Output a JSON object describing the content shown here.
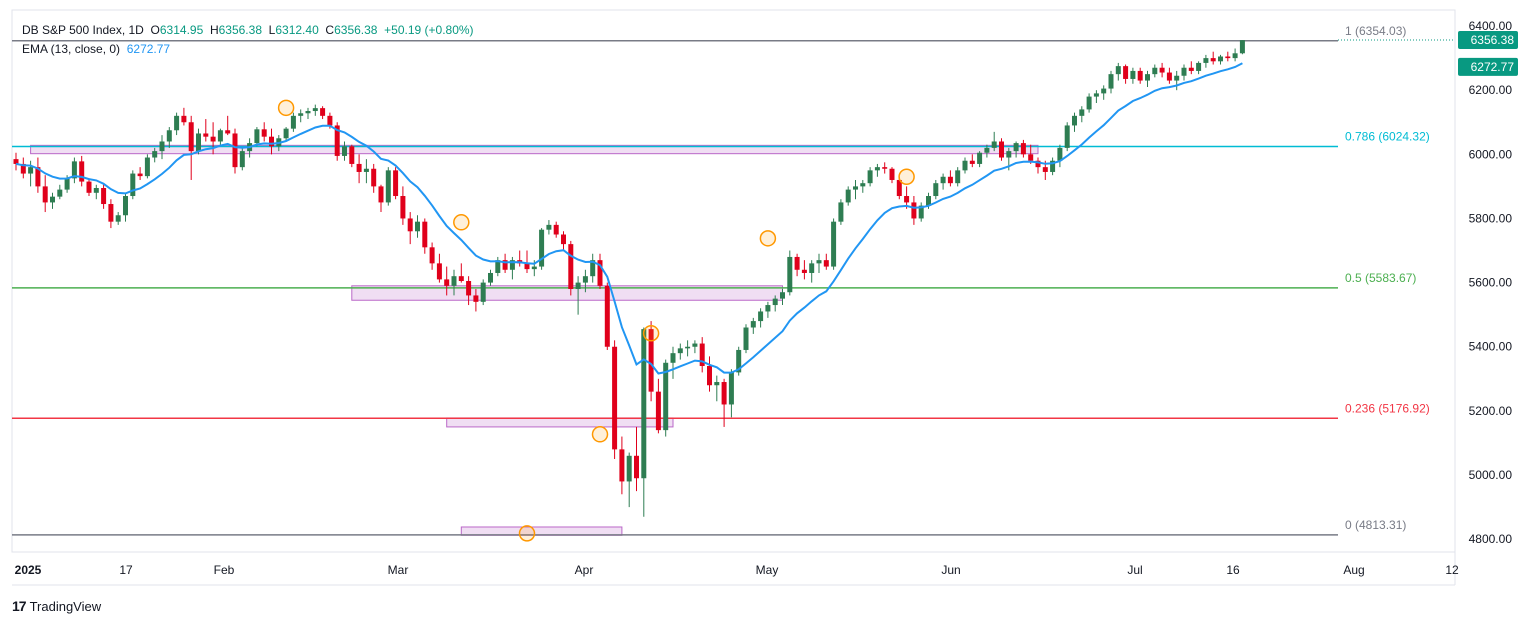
{
  "header": {
    "symbol": "DB S&P 500 Index, 1D",
    "open_label": "O",
    "open": "6314.95",
    "high_label": "H",
    "high": "6356.38",
    "low_label": "L",
    "low": "6312.40",
    "close_label": "C",
    "close": "6356.38",
    "change": "+50.19 (+0.80%)",
    "ema_label": "EMA (13, close, 0)",
    "ema_value": "6272.77"
  },
  "branding": {
    "logo_text": "TradingView",
    "logo_mark": "17"
  },
  "chart_data": {
    "type": "candlestick",
    "y_range": [
      4760,
      6450
    ],
    "y_ticks": [
      "6400.00",
      "6200.00",
      "6000.00",
      "5800.00",
      "5600.00",
      "5400.00",
      "5200.00",
      "5000.00",
      "4800.00"
    ],
    "x_ticks": [
      "2025",
      "17",
      "Feb",
      "Mar",
      "Apr",
      "May",
      "Jun",
      "Jul",
      "16",
      "Aug",
      "12"
    ],
    "price_badges": [
      {
        "label": "6356.38",
        "color": "#089981",
        "value": 6356.38
      },
      {
        "label": "6272.77",
        "color": "#089981",
        "value": 6272.77
      }
    ],
    "fib_levels": [
      {
        "ratio": "1",
        "label": "1 (6354.03)",
        "value": 6354.03,
        "color": "#787b86"
      },
      {
        "ratio": "0.786",
        "label": "0.786 (6024.32)",
        "value": 6024.32,
        "color": "#00bcd4"
      },
      {
        "ratio": "0.5",
        "label": "0.5 (5583.67)",
        "value": 5583.67,
        "color": "#4caf50"
      },
      {
        "ratio": "0.236",
        "label": "0.236 (5176.92)",
        "value": 5176.92,
        "color": "#f23645"
      },
      {
        "ratio": "0",
        "label": "0 (4813.31)",
        "value": 4813.31,
        "color": "#787b86"
      }
    ],
    "support_zones": [
      {
        "x0": 2,
        "x1": 140,
        "low": 6002,
        "high": 6028
      },
      {
        "x0": 46,
        "x1": 105,
        "low": 5545,
        "high": 5590
      },
      {
        "x0": 59,
        "x1": 90,
        "low": 5150,
        "high": 5178
      },
      {
        "x0": 61,
        "x1": 83,
        "low": 4812,
        "high": 4838
      }
    ],
    "markers": [
      {
        "x": 37,
        "y": 6145
      },
      {
        "x": 61,
        "y": 5788
      },
      {
        "x": 70,
        "y": 4818
      },
      {
        "x": 80,
        "y": 5127
      },
      {
        "x": 87,
        "y": 5442
      },
      {
        "x": 103,
        "y": 5738
      },
      {
        "x": 122,
        "y": 5930
      }
    ],
    "ema": {
      "name": "EMA (13, close, 0)",
      "color": "#2196f3"
    },
    "candles": [
      [
        5985,
        6005,
        5950,
        5970
      ],
      [
        5970,
        5990,
        5925,
        5940
      ],
      [
        5940,
        5980,
        5900,
        5960
      ],
      [
        5960,
        5990,
        5880,
        5900
      ],
      [
        5900,
        5935,
        5820,
        5850
      ],
      [
        5850,
        5880,
        5830,
        5868
      ],
      [
        5868,
        5905,
        5860,
        5890
      ],
      [
        5890,
        5935,
        5880,
        5925
      ],
      [
        5925,
        5990,
        5910,
        5978
      ],
      [
        5978,
        5995,
        5900,
        5915
      ],
      [
        5915,
        5925,
        5870,
        5880
      ],
      [
        5880,
        5905,
        5860,
        5895
      ],
      [
        5895,
        5910,
        5830,
        5845
      ],
      [
        5845,
        5860,
        5770,
        5790
      ],
      [
        5790,
        5820,
        5780,
        5810
      ],
      [
        5810,
        5880,
        5790,
        5870
      ],
      [
        5870,
        5950,
        5860,
        5940
      ],
      [
        5940,
        5960,
        5920,
        5932
      ],
      [
        5932,
        6000,
        5925,
        5990
      ],
      [
        5990,
        6020,
        5975,
        6010
      ],
      [
        6010,
        6060,
        5985,
        6040
      ],
      [
        6040,
        6085,
        6020,
        6075
      ],
      [
        6075,
        6130,
        6060,
        6120
      ],
      [
        6120,
        6145,
        6090,
        6100
      ],
      [
        6100,
        6120,
        5920,
        6010
      ],
      [
        6010,
        6080,
        6000,
        6065
      ],
      [
        6065,
        6110,
        6040,
        6055
      ],
      [
        6055,
        6100,
        6000,
        6040
      ],
      [
        6040,
        6080,
        6030,
        6075
      ],
      [
        6075,
        6120,
        6060,
        6065
      ],
      [
        6065,
        6080,
        5940,
        5960
      ],
      [
        5960,
        6020,
        5950,
        6010
      ],
      [
        6010,
        6050,
        5990,
        6035
      ],
      [
        6035,
        6085,
        6025,
        6078
      ],
      [
        6078,
        6100,
        6040,
        6055
      ],
      [
        6055,
        6080,
        6000,
        6025
      ],
      [
        6025,
        6060,
        6010,
        6050
      ],
      [
        6050,
        6085,
        6040,
        6080
      ],
      [
        6080,
        6130,
        6070,
        6120
      ],
      [
        6120,
        6140,
        6100,
        6128
      ],
      [
        6128,
        6145,
        6110,
        6135
      ],
      [
        6135,
        6155,
        6120,
        6144
      ],
      [
        6144,
        6150,
        6110,
        6120
      ],
      [
        6120,
        6130,
        6080,
        6090
      ],
      [
        6090,
        6100,
        5980,
        5995
      ],
      [
        5995,
        6040,
        5980,
        6025
      ],
      [
        6025,
        6030,
        5960,
        5970
      ],
      [
        5970,
        6000,
        5910,
        5945
      ],
      [
        5945,
        5985,
        5910,
        5955
      ],
      [
        5955,
        5970,
        5880,
        5900
      ],
      [
        5900,
        5905,
        5820,
        5850
      ],
      [
        5850,
        5960,
        5840,
        5950
      ],
      [
        5950,
        5960,
        5860,
        5870
      ],
      [
        5870,
        5900,
        5780,
        5800
      ],
      [
        5800,
        5820,
        5720,
        5760
      ],
      [
        5760,
        5810,
        5740,
        5790
      ],
      [
        5790,
        5800,
        5690,
        5710
      ],
      [
        5710,
        5725,
        5640,
        5660
      ],
      [
        5660,
        5690,
        5600,
        5610
      ],
      [
        5610,
        5650,
        5560,
        5590
      ],
      [
        5590,
        5640,
        5560,
        5620
      ],
      [
        5620,
        5660,
        5600,
        5605
      ],
      [
        5605,
        5620,
        5530,
        5560
      ],
      [
        5560,
        5580,
        5510,
        5540
      ],
      [
        5540,
        5610,
        5530,
        5600
      ],
      [
        5600,
        5640,
        5590,
        5630
      ],
      [
        5630,
        5680,
        5620,
        5670
      ],
      [
        5670,
        5690,
        5630,
        5640
      ],
      [
        5640,
        5680,
        5610,
        5670
      ],
      [
        5670,
        5700,
        5650,
        5660
      ],
      [
        5660,
        5700,
        5630,
        5642
      ],
      [
        5642,
        5670,
        5620,
        5650
      ],
      [
        5650,
        5770,
        5640,
        5765
      ],
      [
        5765,
        5795,
        5750,
        5780
      ],
      [
        5780,
        5790,
        5740,
        5750
      ],
      [
        5750,
        5760,
        5700,
        5720
      ],
      [
        5720,
        5730,
        5560,
        5580
      ],
      [
        5580,
        5620,
        5500,
        5600
      ],
      [
        5600,
        5640,
        5570,
        5620
      ],
      [
        5620,
        5690,
        5600,
        5670
      ],
      [
        5670,
        5690,
        5580,
        5590
      ],
      [
        5590,
        5600,
        5390,
        5400
      ],
      [
        5400,
        5420,
        5050,
        5080
      ],
      [
        5080,
        5120,
        4940,
        4980
      ],
      [
        4980,
        5070,
        4900,
        5060
      ],
      [
        5060,
        5150,
        4950,
        4990
      ],
      [
        4990,
        5460,
        4870,
        5455
      ],
      [
        5455,
        5480,
        5230,
        5260
      ],
      [
        5260,
        5300,
        5130,
        5140
      ],
      [
        5140,
        5360,
        5120,
        5350
      ],
      [
        5350,
        5400,
        5300,
        5380
      ],
      [
        5380,
        5410,
        5360,
        5395
      ],
      [
        5395,
        5420,
        5370,
        5400
      ],
      [
        5400,
        5420,
        5380,
        5410
      ],
      [
        5410,
        5430,
        5320,
        5340
      ],
      [
        5340,
        5370,
        5260,
        5280
      ],
      [
        5280,
        5310,
        5230,
        5290
      ],
      [
        5290,
        5300,
        5150,
        5220
      ],
      [
        5220,
        5330,
        5180,
        5320
      ],
      [
        5320,
        5400,
        5310,
        5390
      ],
      [
        5390,
        5470,
        5380,
        5460
      ],
      [
        5460,
        5490,
        5440,
        5480
      ],
      [
        5480,
        5520,
        5460,
        5510
      ],
      [
        5510,
        5540,
        5490,
        5530
      ],
      [
        5530,
        5560,
        5510,
        5550
      ],
      [
        5550,
        5580,
        5530,
        5570
      ],
      [
        5570,
        5700,
        5560,
        5680
      ],
      [
        5680,
        5690,
        5620,
        5640
      ],
      [
        5640,
        5670,
        5610,
        5630
      ],
      [
        5630,
        5670,
        5600,
        5660
      ],
      [
        5660,
        5690,
        5630,
        5670
      ],
      [
        5670,
        5690,
        5640,
        5650
      ],
      [
        5650,
        5800,
        5640,
        5790
      ],
      [
        5790,
        5860,
        5780,
        5850
      ],
      [
        5850,
        5900,
        5840,
        5890
      ],
      [
        5890,
        5920,
        5860,
        5900
      ],
      [
        5900,
        5920,
        5880,
        5910
      ],
      [
        5910,
        5960,
        5900,
        5950
      ],
      [
        5950,
        5970,
        5930,
        5960
      ],
      [
        5960,
        5975,
        5940,
        5955
      ],
      [
        5955,
        5960,
        5910,
        5920
      ],
      [
        5920,
        5930,
        5860,
        5870
      ],
      [
        5870,
        5900,
        5830,
        5850
      ],
      [
        5850,
        5870,
        5780,
        5800
      ],
      [
        5800,
        5850,
        5790,
        5840
      ],
      [
        5840,
        5880,
        5830,
        5870
      ],
      [
        5870,
        5920,
        5860,
        5910
      ],
      [
        5910,
        5940,
        5890,
        5930
      ],
      [
        5930,
        5950,
        5900,
        5910
      ],
      [
        5910,
        5960,
        5900,
        5950
      ],
      [
        5950,
        5990,
        5940,
        5980
      ],
      [
        5980,
        6000,
        5960,
        5970
      ],
      [
        5970,
        6010,
        5960,
        6005
      ],
      [
        6005,
        6030,
        5990,
        6020
      ],
      [
        6020,
        6070,
        6010,
        6040
      ],
      [
        6040,
        6050,
        5980,
        5990
      ],
      [
        5990,
        6020,
        5950,
        6010
      ],
      [
        6010,
        6040,
        5990,
        6035
      ],
      [
        6035,
        6045,
        5990,
        6000
      ],
      [
        6000,
        6030,
        5970,
        5980
      ],
      [
        5980,
        5990,
        5940,
        5960
      ],
      [
        5960,
        5980,
        5920,
        5945
      ],
      [
        5945,
        5990,
        5935,
        5980
      ],
      [
        5980,
        6030,
        5960,
        6020
      ],
      [
        6020,
        6100,
        6010,
        6090
      ],
      [
        6090,
        6130,
        6070,
        6120
      ],
      [
        6120,
        6150,
        6100,
        6140
      ],
      [
        6140,
        6190,
        6130,
        6180
      ],
      [
        6180,
        6200,
        6160,
        6190
      ],
      [
        6190,
        6215,
        6170,
        6205
      ],
      [
        6205,
        6260,
        6190,
        6250
      ],
      [
        6250,
        6285,
        6230,
        6275
      ],
      [
        6275,
        6280,
        6220,
        6235
      ],
      [
        6235,
        6270,
        6220,
        6260
      ],
      [
        6260,
        6270,
        6220,
        6230
      ],
      [
        6230,
        6260,
        6210,
        6250
      ],
      [
        6250,
        6280,
        6240,
        6270
      ],
      [
        6270,
        6285,
        6240,
        6255
      ],
      [
        6255,
        6270,
        6220,
        6230
      ],
      [
        6230,
        6260,
        6200,
        6245
      ],
      [
        6245,
        6280,
        6230,
        6270
      ],
      [
        6270,
        6290,
        6250,
        6260
      ],
      [
        6260,
        6290,
        6250,
        6285
      ],
      [
        6285,
        6310,
        6270,
        6300
      ],
      [
        6300,
        6320,
        6280,
        6290
      ],
      [
        6290,
        6310,
        6280,
        6305
      ],
      [
        6305,
        6320,
        6290,
        6300
      ],
      [
        6300,
        6330,
        6290,
        6315
      ],
      [
        6315,
        6356,
        6312,
        6356
      ]
    ]
  }
}
